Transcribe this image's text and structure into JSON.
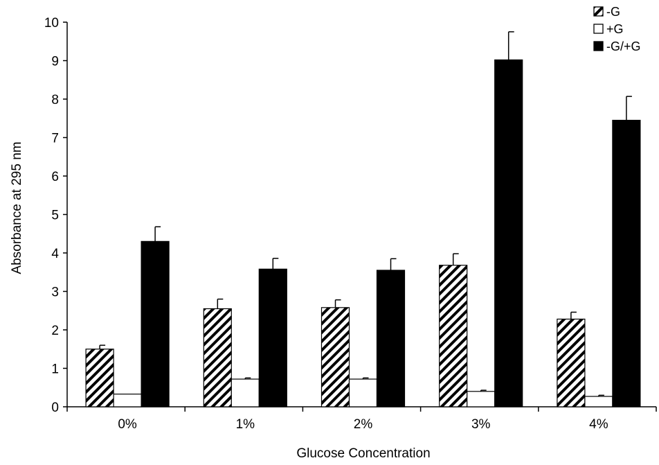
{
  "chart_data": {
    "type": "bar",
    "title": "",
    "xlabel": "Glucose Concentration",
    "ylabel": "Absorbance at 295 nm",
    "categories": [
      "0%",
      "1%",
      "2%",
      "3%",
      "4%"
    ],
    "ylim": [
      0,
      10
    ],
    "yticks": [
      "0",
      "1",
      "2",
      "3",
      "4",
      "5",
      "6",
      "7",
      "8",
      "9",
      "10"
    ],
    "grid": false,
    "legend_position": "top-right",
    "series": [
      {
        "name": "-G",
        "fill": "hatched",
        "color": "#000000",
        "values": [
          1.5,
          2.55,
          2.58,
          3.68,
          2.28
        ],
        "errors": [
          0.1,
          0.25,
          0.2,
          0.3,
          0.18
        ]
      },
      {
        "name": "+G",
        "fill": "white",
        "color": "#ffffff",
        "values": [
          0.33,
          0.72,
          0.72,
          0.4,
          0.27
        ],
        "errors": [
          0.0,
          0.03,
          0.03,
          0.03,
          0.03
        ]
      },
      {
        "name": "-G/+G",
        "fill": "solid",
        "color": "#000000",
        "values": [
          4.3,
          3.58,
          3.55,
          9.02,
          7.45
        ],
        "errors": [
          0.38,
          0.28,
          0.3,
          0.73,
          0.62
        ]
      }
    ]
  }
}
